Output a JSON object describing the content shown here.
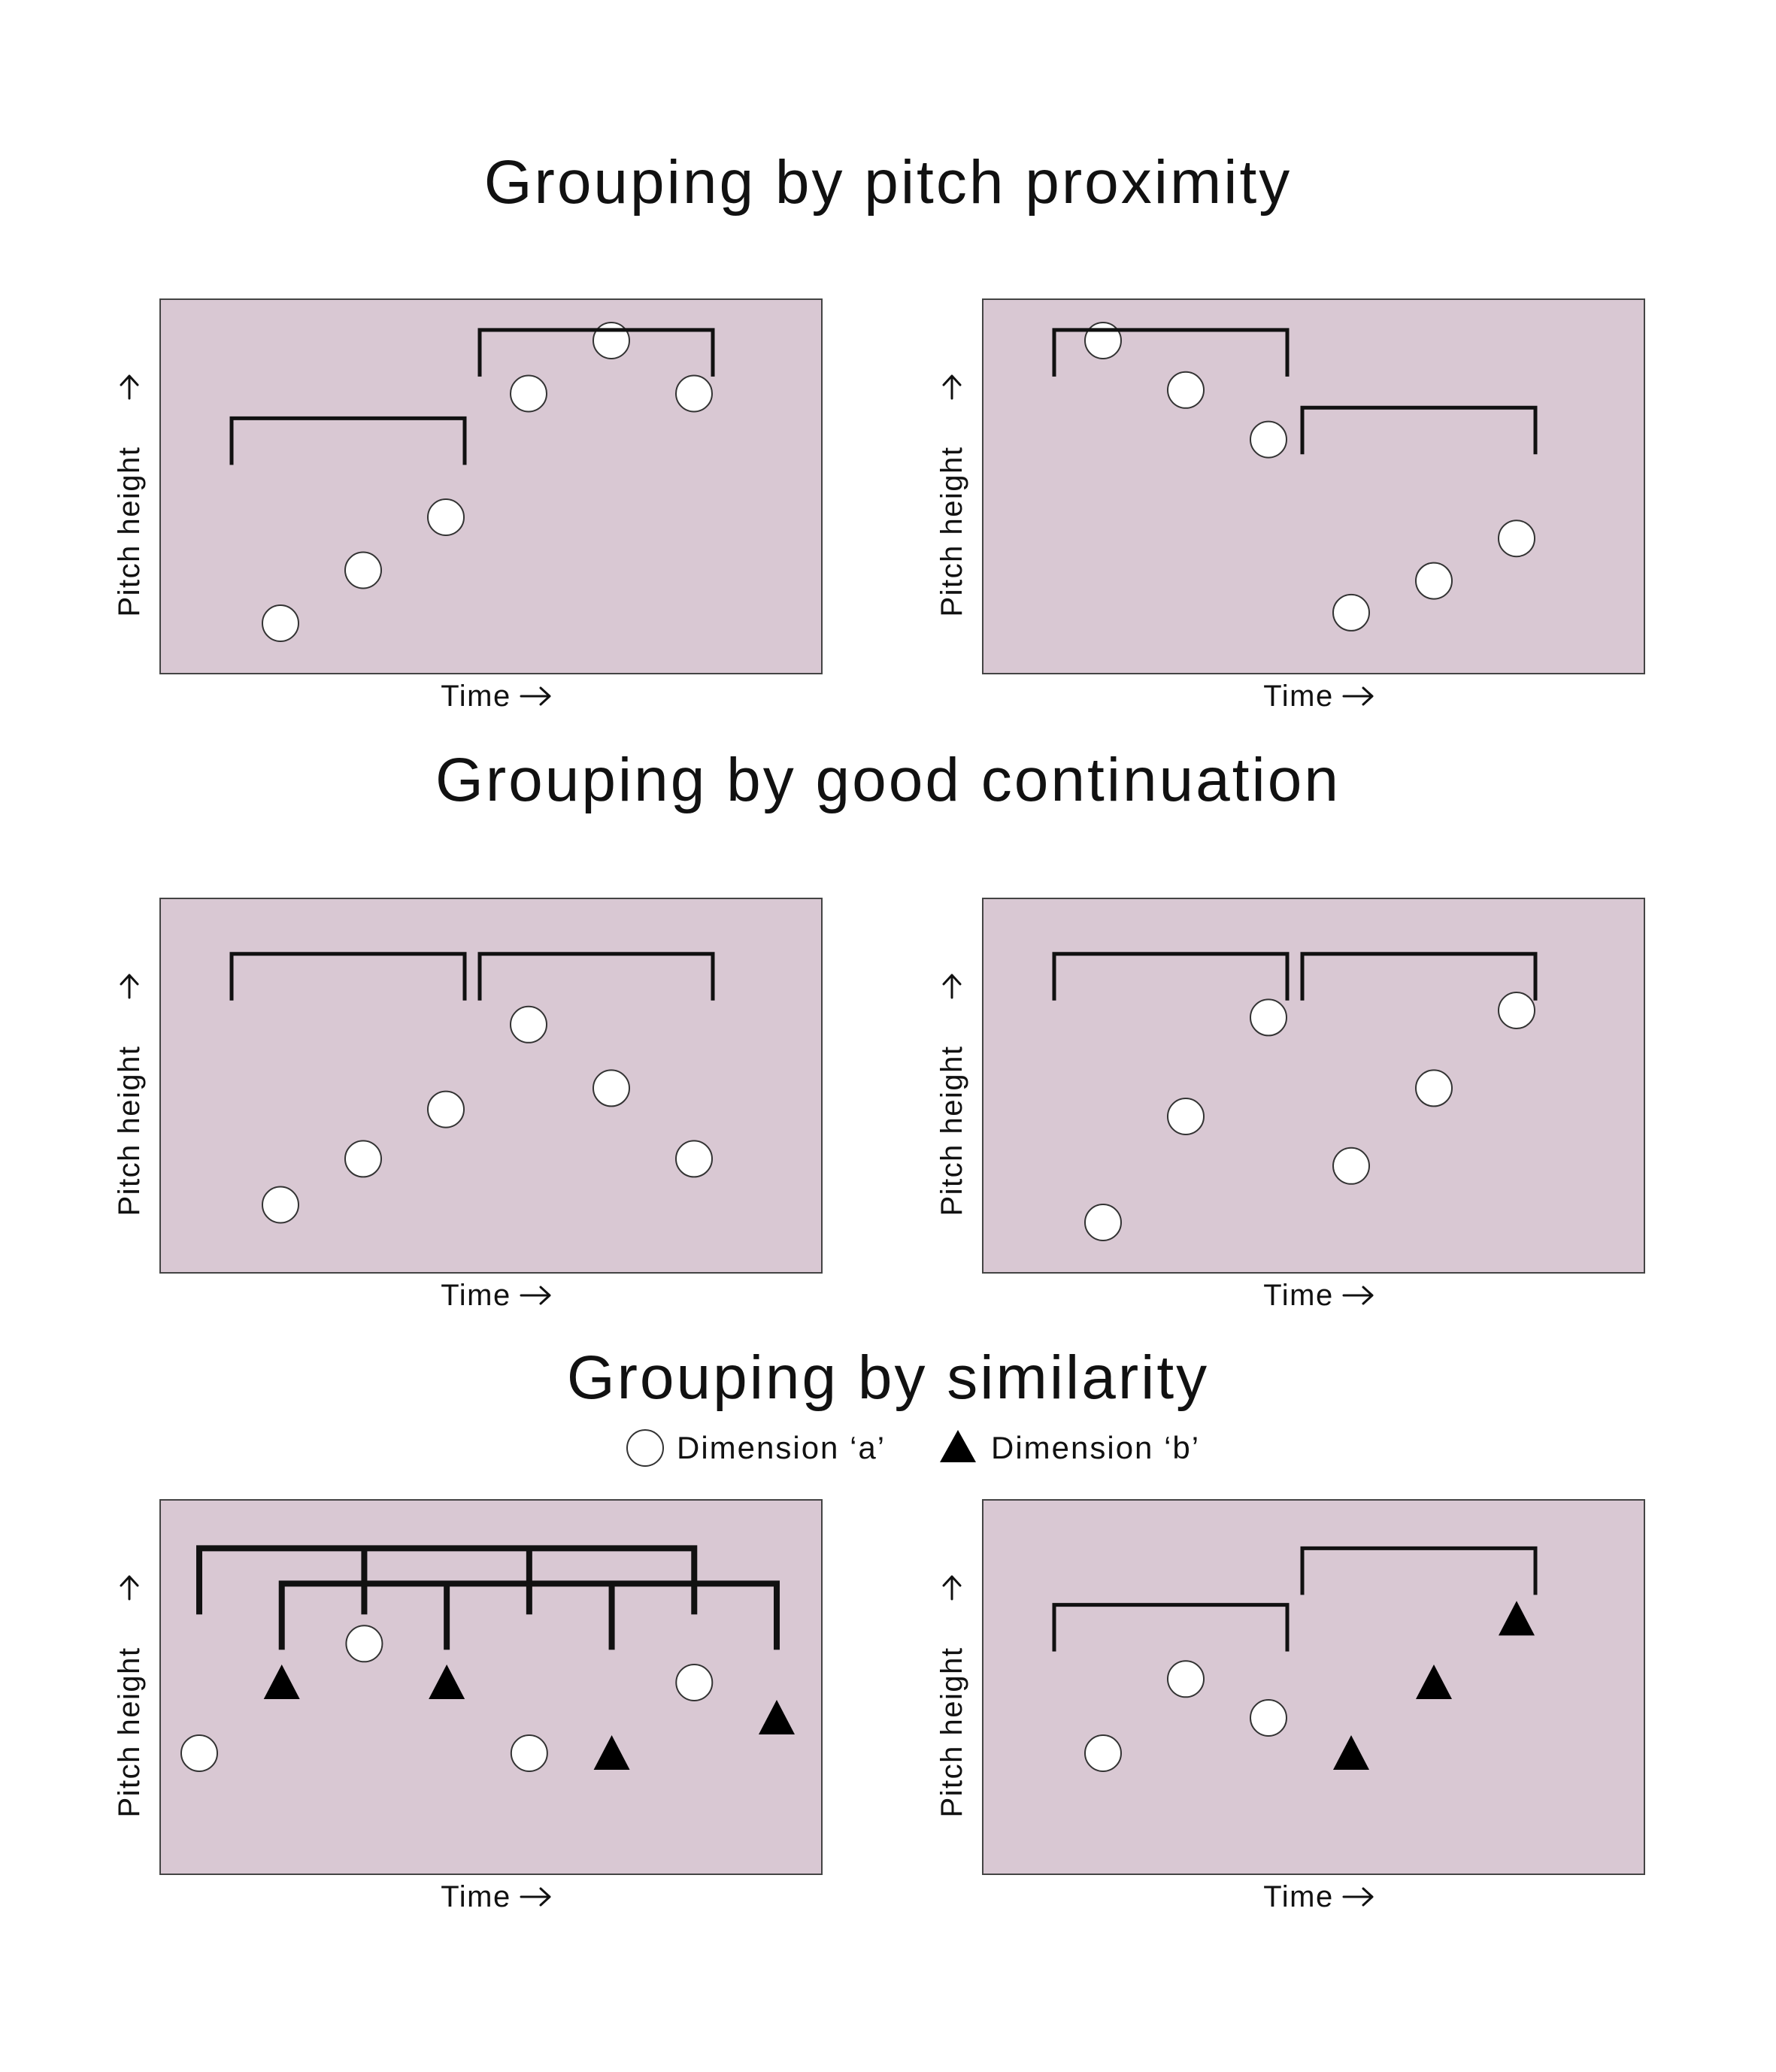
{
  "sections": [
    {
      "title": "Grouping by pitch proximity",
      "panels": [
        {
          "ylabel": "Pitch height",
          "xlabel": "Time",
          "notes": [
            {
              "t": 1,
              "pitch": 1.0,
              "type": "a"
            },
            {
              "t": 2,
              "pitch": 2.5,
              "type": "a"
            },
            {
              "t": 3,
              "pitch": 4.0,
              "type": "a"
            },
            {
              "t": 4,
              "pitch": 7.5,
              "type": "a"
            },
            {
              "t": 5,
              "pitch": 9.0,
              "type": "a"
            },
            {
              "t": 6,
              "pitch": 7.5,
              "type": "a"
            }
          ],
          "groups": [
            {
              "from": 1,
              "to": 3,
              "level": 6.8
            },
            {
              "from": 4,
              "to": 6,
              "level": 9.3
            }
          ]
        },
        {
          "ylabel": "Pitch height",
          "xlabel": "Time",
          "notes": [
            {
              "t": 1,
              "pitch": 9.0,
              "type": "a"
            },
            {
              "t": 2,
              "pitch": 7.6,
              "type": "a"
            },
            {
              "t": 3,
              "pitch": 6.2,
              "type": "a"
            },
            {
              "t": 4,
              "pitch": 1.3,
              "type": "a"
            },
            {
              "t": 5,
              "pitch": 2.2,
              "type": "a"
            },
            {
              "t": 6,
              "pitch": 3.4,
              "type": "a"
            }
          ],
          "groups": [
            {
              "from": 1,
              "to": 3,
              "level": 9.3
            },
            {
              "from": 4,
              "to": 6,
              "level": 7.1
            }
          ]
        }
      ]
    },
    {
      "title": "Grouping by good continuation",
      "panels": [
        {
          "ylabel": "Pitch height",
          "xlabel": "Time",
          "notes": [
            {
              "t": 1,
              "pitch": 1.5,
              "type": "a"
            },
            {
              "t": 2,
              "pitch": 2.8,
              "type": "a"
            },
            {
              "t": 3,
              "pitch": 4.2,
              "type": "a"
            },
            {
              "t": 4,
              "pitch": 6.6,
              "type": "a"
            },
            {
              "t": 5,
              "pitch": 4.8,
              "type": "a"
            },
            {
              "t": 6,
              "pitch": 2.8,
              "type": "a"
            }
          ],
          "groups": [
            {
              "from": 1,
              "to": 3,
              "level": 8.6
            },
            {
              "from": 4,
              "to": 6,
              "level": 8.6
            }
          ]
        },
        {
          "ylabel": "Pitch height",
          "xlabel": "Time",
          "notes": [
            {
              "t": 1,
              "pitch": 1.0,
              "type": "a"
            },
            {
              "t": 2,
              "pitch": 4.0,
              "type": "a"
            },
            {
              "t": 3,
              "pitch": 6.8,
              "type": "a"
            },
            {
              "t": 4,
              "pitch": 2.6,
              "type": "a"
            },
            {
              "t": 5,
              "pitch": 4.8,
              "type": "a"
            },
            {
              "t": 6,
              "pitch": 7.0,
              "type": "a"
            }
          ],
          "groups": [
            {
              "from": 1,
              "to": 3,
              "level": 8.6
            },
            {
              "from": 4,
              "to": 6,
              "level": 8.6
            }
          ]
        }
      ]
    },
    {
      "title": "Grouping by similarity",
      "legend": {
        "a_label": "Dimension ‘a’",
        "b_label": "Dimension ‘b’"
      },
      "panels": [
        {
          "ylabel": "Pitch height",
          "xlabel": "Time",
          "notes": [
            {
              "t": 1,
              "pitch": 3.0,
              "type": "a"
            },
            {
              "t": 2,
              "pitch": 5.0,
              "type": "b"
            },
            {
              "t": 3,
              "pitch": 6.1,
              "type": "a"
            },
            {
              "t": 4,
              "pitch": 5.0,
              "type": "b"
            },
            {
              "t": 5,
              "pitch": 3.0,
              "type": "a"
            },
            {
              "t": 6,
              "pitch": 3.0,
              "type": "b"
            },
            {
              "t": 7,
              "pitch": 5.0,
              "type": "a"
            },
            {
              "t": 8,
              "pitch": 4.0,
              "type": "b"
            }
          ],
          "groups": [
            {
              "members": [
                1,
                3,
                5,
                7
              ],
              "level": 8.8
            },
            {
              "members": [
                2,
                4,
                6,
                8
              ],
              "level": 7.8
            }
          ]
        },
        {
          "ylabel": "Pitch height",
          "xlabel": "Time",
          "notes": [
            {
              "t": 1,
              "pitch": 3.0,
              "type": "a"
            },
            {
              "t": 2,
              "pitch": 5.1,
              "type": "a"
            },
            {
              "t": 3,
              "pitch": 4.0,
              "type": "a"
            },
            {
              "t": 4,
              "pitch": 3.0,
              "type": "b"
            },
            {
              "t": 5,
              "pitch": 5.0,
              "type": "b"
            },
            {
              "t": 6,
              "pitch": 6.8,
              "type": "b"
            }
          ],
          "groups": [
            {
              "from": 1,
              "to": 3,
              "level": 7.2
            },
            {
              "from": 4,
              "to": 6,
              "level": 8.8
            }
          ]
        }
      ]
    }
  ],
  "colors": {
    "panel_background": "#d9c8d3",
    "panel_border": "#444444",
    "note_a_fill": "#ffffff",
    "note_b_fill": "#000000"
  },
  "icons": {
    "note_a": "white-circle-icon",
    "note_b": "black-triangle-icon",
    "axis_arrow": "right-arrow-icon"
  }
}
